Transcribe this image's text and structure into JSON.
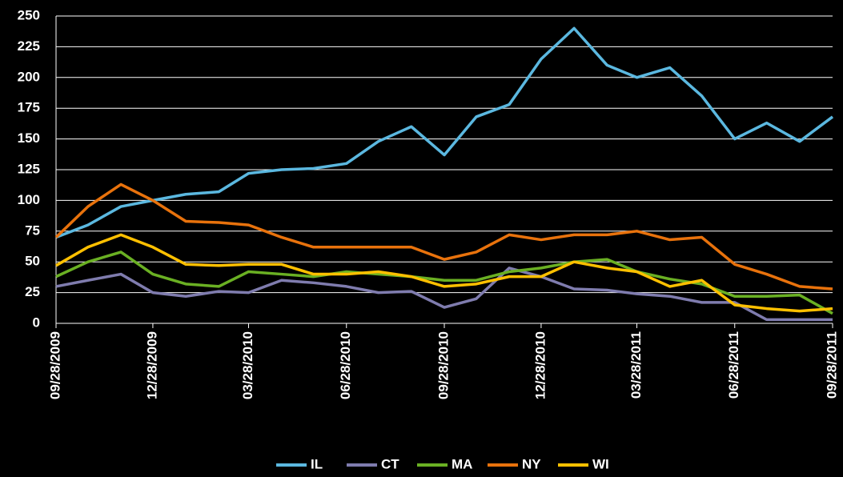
{
  "chart_data": {
    "type": "line",
    "x": [
      "09/28/2009",
      "10/28/2009",
      "11/28/2009",
      "12/28/2009",
      "01/28/2010",
      "02/28/2010",
      "03/28/2010",
      "04/28/2010",
      "05/28/2010",
      "06/28/2010",
      "07/28/2010",
      "08/28/2010",
      "09/28/2010",
      "10/28/2010",
      "11/28/2010",
      "12/28/2010",
      "01/28/2011",
      "02/28/2011",
      "03/28/2011",
      "04/28/2011",
      "05/28/2011",
      "06/28/2011",
      "07/28/2011",
      "08/28/2011",
      "09/28/2011"
    ],
    "series": [
      {
        "name": "IL",
        "color": "#5bb8e0",
        "values": [
          70,
          80,
          95,
          100,
          105,
          107,
          122,
          125,
          126,
          130,
          148,
          160,
          137,
          168,
          178,
          215,
          240,
          210,
          200,
          208,
          185,
          150,
          163,
          148,
          168
        ]
      },
      {
        "name": "CT",
        "color": "#7f7cae",
        "values": [
          30,
          35,
          40,
          25,
          22,
          26,
          25,
          35,
          33,
          30,
          25,
          26,
          13,
          20,
          45,
          38,
          28,
          27,
          24,
          22,
          17,
          17,
          3,
          3,
          3
        ]
      },
      {
        "name": "MA",
        "color": "#6ab023",
        "values": [
          38,
          50,
          58,
          40,
          32,
          30,
          42,
          40,
          38,
          42,
          40,
          38,
          35,
          35,
          42,
          45,
          50,
          52,
          42,
          36,
          32,
          22,
          22,
          23,
          8
        ]
      },
      {
        "name": "NY",
        "color": "#e8720c",
        "values": [
          70,
          95,
          113,
          100,
          83,
          82,
          80,
          70,
          62,
          62,
          62,
          62,
          52,
          58,
          72,
          68,
          72,
          72,
          75,
          68,
          70,
          48,
          40,
          30,
          28
        ]
      },
      {
        "name": "WI",
        "color": "#ffc000",
        "values": [
          47,
          62,
          72,
          62,
          48,
          47,
          48,
          48,
          40,
          40,
          42,
          38,
          30,
          32,
          38,
          38,
          50,
          45,
          42,
          30,
          35,
          15,
          12,
          10,
          12
        ]
      }
    ],
    "xlim": [
      "09/28/2009",
      "09/28/2011"
    ],
    "xticks": [
      "09/28/2009",
      "12/28/2009",
      "03/28/2010",
      "06/28/2010",
      "09/28/2010",
      "12/28/2010",
      "03/28/2011",
      "06/28/2011",
      "09/28/2011"
    ],
    "ylim": [
      0,
      250
    ],
    "yticks": [
      0,
      25,
      50,
      75,
      100,
      125,
      150,
      175,
      200,
      225,
      250
    ],
    "grid": true,
    "legend": "bottom"
  }
}
